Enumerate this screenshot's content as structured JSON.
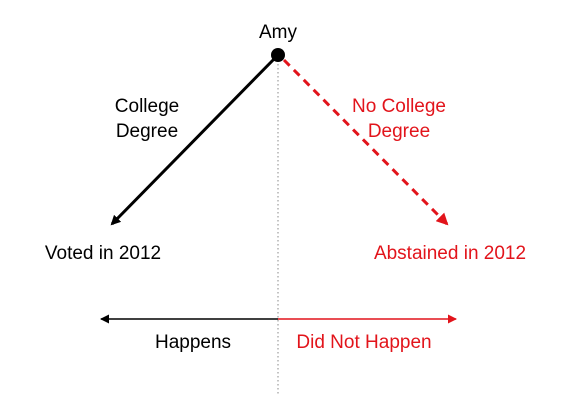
{
  "diagram": {
    "root_label": "Amy",
    "left_branch": {
      "line1": "College",
      "line2": "Degree",
      "outcome": "Voted in 2012"
    },
    "right_branch": {
      "line1": "No College",
      "line2": "Degree",
      "outcome": "Abstained in 2012"
    },
    "axis": {
      "left_label": "Happens",
      "right_label": "Did Not Happen"
    },
    "colors": {
      "actual": "#000000",
      "counterfactual": "#e2141b",
      "divider": "#8a8a8a"
    }
  }
}
